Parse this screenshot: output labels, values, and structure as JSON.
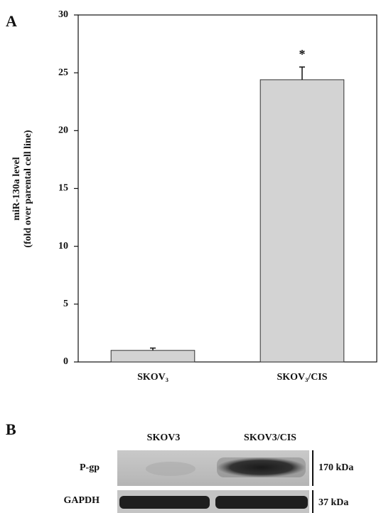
{
  "chart_data": {
    "type": "bar",
    "panel_label": "A",
    "ylabel": [
      "miR-130a level",
      "(fold over parental cell line)"
    ],
    "categories": [
      "SKOV₃",
      "SKOV₃/CIS"
    ],
    "values": [
      1,
      24.4
    ],
    "errors": [
      0.2,
      1.1
    ],
    "color": "#d3d3d3",
    "annotation": {
      "text": "*",
      "category": "SKOV₃/CIS"
    },
    "ylim": [
      0,
      30
    ],
    "yticks": [
      0,
      5,
      10,
      15,
      20,
      25,
      30
    ],
    "grid": false
  },
  "blot": {
    "panel_label": "B",
    "columns": [
      "SKOV3",
      "SKOV3/CIS"
    ],
    "rows": [
      {
        "label": "P-gp",
        "size": "170 kDa"
      },
      {
        "label": "GAPDH",
        "size": "37 kDa"
      }
    ]
  }
}
